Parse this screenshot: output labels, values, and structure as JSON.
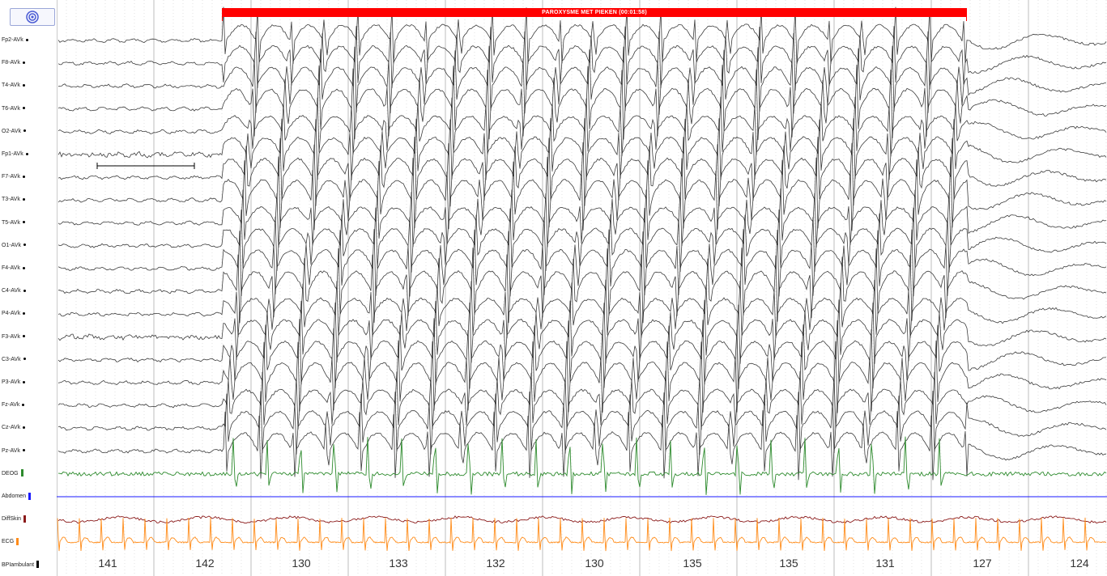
{
  "toolbar": {
    "target_icon": "target-icon"
  },
  "annotation": {
    "label": "PAROXYSME MET PIEKEN (00:01:58)",
    "color": "#ff0000"
  },
  "channels": [
    {
      "label": "Fp2-AVk",
      "marker": "dot",
      "color": "#000000"
    },
    {
      "label": "F8-AVk",
      "marker": "dot",
      "color": "#000000"
    },
    {
      "label": "T4-AVk",
      "marker": "dot",
      "color": "#000000"
    },
    {
      "label": "T6-AVk",
      "marker": "dot",
      "color": "#000000"
    },
    {
      "label": "O2-AVk",
      "marker": "dot",
      "color": "#000000"
    },
    {
      "label": "Fp1-AVk",
      "marker": "dot",
      "color": "#000000"
    },
    {
      "label": "F7-AVk",
      "marker": "dot",
      "color": "#000000"
    },
    {
      "label": "T3-AVk",
      "marker": "dot",
      "color": "#000000"
    },
    {
      "label": "T5-AVk",
      "marker": "dot",
      "color": "#000000"
    },
    {
      "label": "O1-AVk",
      "marker": "dot",
      "color": "#000000"
    },
    {
      "label": "F4-AVk",
      "marker": "dot",
      "color": "#000000"
    },
    {
      "label": "C4-AVk",
      "marker": "dot",
      "color": "#000000"
    },
    {
      "label": "P4-AVk",
      "marker": "dot",
      "color": "#000000"
    },
    {
      "label": "F3-AVk",
      "marker": "dot",
      "color": "#000000"
    },
    {
      "label": "C3-AVk",
      "marker": "dot",
      "color": "#000000"
    },
    {
      "label": "P3-AVk",
      "marker": "dot",
      "color": "#000000"
    },
    {
      "label": "Fz-AVk",
      "marker": "dot",
      "color": "#000000"
    },
    {
      "label": "Cz-AVk",
      "marker": "dot",
      "color": "#000000"
    },
    {
      "label": "Pz-AVk",
      "marker": "dot",
      "color": "#000000"
    },
    {
      "label": "DEOG",
      "marker": "bar",
      "color": "#2e8b2e"
    },
    {
      "label": "Abdomen",
      "marker": "bar",
      "color": "#1a1aff"
    },
    {
      "label": "DiffSkin",
      "marker": "bar",
      "color": "#8b1a1a"
    },
    {
      "label": "ECG",
      "marker": "bar",
      "color": "#ff8c1a"
    },
    {
      "label": "BPIambulant",
      "marker": "bar",
      "color": "#000000"
    }
  ],
  "heart_rates": [
    "141",
    "142",
    "130",
    "133",
    "132",
    "130",
    "135",
    "135",
    "131",
    "127",
    "124"
  ],
  "colors": {
    "eeg": "#1a1a1a",
    "grid_major": "#bdbdbd",
    "grid_minor": "#d0d0d0"
  }
}
